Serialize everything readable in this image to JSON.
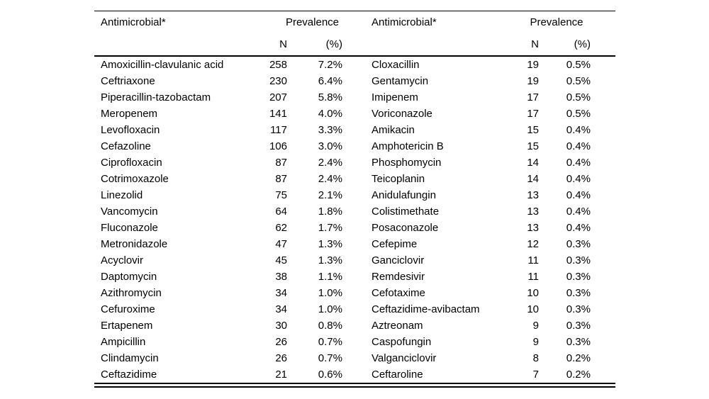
{
  "colors": {
    "background": "#ffffff",
    "text": "#000000",
    "rule": "#000000"
  },
  "table": {
    "header": {
      "antimicrobial_label": "Antimicrobial*",
      "prevalence_label": "Prevalence",
      "n_label": "N",
      "pct_label": "(%)"
    },
    "left_rows": [
      {
        "name": "Amoxicillin-clavulanic acid",
        "n": 258,
        "pct": "7.2%"
      },
      {
        "name": "Ceftriaxone",
        "n": 230,
        "pct": "6.4%"
      },
      {
        "name": "Piperacillin-tazobactam",
        "n": 207,
        "pct": "5.8%"
      },
      {
        "name": "Meropenem",
        "n": 141,
        "pct": "4.0%"
      },
      {
        "name": "Levofloxacin",
        "n": 117,
        "pct": "3.3%"
      },
      {
        "name": "Cefazoline",
        "n": 106,
        "pct": "3.0%"
      },
      {
        "name": "Ciprofloxacin",
        "n": 87,
        "pct": "2.4%"
      },
      {
        "name": "Cotrimoxazole",
        "n": 87,
        "pct": "2.4%"
      },
      {
        "name": "Linezolid",
        "n": 75,
        "pct": "2.1%"
      },
      {
        "name": "Vancomycin",
        "n": 64,
        "pct": "1.8%"
      },
      {
        "name": "Fluconazole",
        "n": 62,
        "pct": "1.7%"
      },
      {
        "name": "Metronidazole",
        "n": 47,
        "pct": "1.3%"
      },
      {
        "name": "Acyclovir",
        "n": 45,
        "pct": "1.3%"
      },
      {
        "name": "Daptomycin",
        "n": 38,
        "pct": "1.1%"
      },
      {
        "name": "Azithromycin",
        "n": 34,
        "pct": "1.0%"
      },
      {
        "name": "Cefuroxime",
        "n": 34,
        "pct": "1.0%"
      },
      {
        "name": "Ertapenem",
        "n": 30,
        "pct": "0.8%"
      },
      {
        "name": "Ampicillin",
        "n": 26,
        "pct": "0.7%"
      },
      {
        "name": "Clindamycin",
        "n": 26,
        "pct": "0.7%"
      },
      {
        "name": "Ceftazidime",
        "n": 21,
        "pct": "0.6%"
      }
    ],
    "right_rows": [
      {
        "name": "Cloxacillin",
        "n": 19,
        "pct": "0.5%"
      },
      {
        "name": "Gentamycin",
        "n": 19,
        "pct": "0.5%"
      },
      {
        "name": "Imipenem",
        "n": 17,
        "pct": "0.5%"
      },
      {
        "name": "Voriconazole",
        "n": 17,
        "pct": "0.5%"
      },
      {
        "name": "Amikacin",
        "n": 15,
        "pct": "0.4%"
      },
      {
        "name": "Amphotericin B",
        "n": 15,
        "pct": "0.4%"
      },
      {
        "name": "Phosphomycin",
        "n": 14,
        "pct": "0.4%"
      },
      {
        "name": "Teicoplanin",
        "n": 14,
        "pct": "0.4%"
      },
      {
        "name": "Anidulafungin",
        "n": 13,
        "pct": "0.4%"
      },
      {
        "name": "Colistimethate",
        "n": 13,
        "pct": "0.4%"
      },
      {
        "name": "Posaconazole",
        "n": 13,
        "pct": "0.4%"
      },
      {
        "name": "Cefepime",
        "n": 12,
        "pct": "0.3%"
      },
      {
        "name": "Ganciclovir",
        "n": 11,
        "pct": "0.3%"
      },
      {
        "name": "Remdesivir",
        "n": 11,
        "pct": "0.3%"
      },
      {
        "name": "Cefotaxime",
        "n": 10,
        "pct": "0.3%"
      },
      {
        "name": "Ceftazidime-avibactam",
        "n": 10,
        "pct": "0.3%"
      },
      {
        "name": "Aztreonam",
        "n": 9,
        "pct": "0.3%"
      },
      {
        "name": "Caspofungin",
        "n": 9,
        "pct": "0.3%"
      },
      {
        "name": "Valganciclovir",
        "n": 8,
        "pct": "0.2%"
      },
      {
        "name": "Ceftaroline",
        "n": 7,
        "pct": "0.2%"
      }
    ]
  },
  "chart_data": {
    "type": "table",
    "title": "",
    "columns": [
      "Antimicrobial*",
      "N",
      "(%)",
      "Antimicrobial*",
      "N",
      "(%)"
    ],
    "rows": [
      [
        "Amoxicillin-clavulanic acid",
        258,
        "7.2%",
        "Cloxacillin",
        19,
        "0.5%"
      ],
      [
        "Ceftriaxone",
        230,
        "6.4%",
        "Gentamycin",
        19,
        "0.5%"
      ],
      [
        "Piperacillin-tazobactam",
        207,
        "5.8%",
        "Imipenem",
        17,
        "0.5%"
      ],
      [
        "Meropenem",
        141,
        "4.0%",
        "Voriconazole",
        17,
        "0.5%"
      ],
      [
        "Levofloxacin",
        117,
        "3.3%",
        "Amikacin",
        15,
        "0.4%"
      ],
      [
        "Cefazoline",
        106,
        "3.0%",
        "Amphotericin B",
        15,
        "0.4%"
      ],
      [
        "Ciprofloxacin",
        87,
        "2.4%",
        "Phosphomycin",
        14,
        "0.4%"
      ],
      [
        "Cotrimoxazole",
        87,
        "2.4%",
        "Teicoplanin",
        14,
        "0.4%"
      ],
      [
        "Linezolid",
        75,
        "2.1%",
        "Anidulafungin",
        13,
        "0.4%"
      ],
      [
        "Vancomycin",
        64,
        "1.8%",
        "Colistimethate",
        13,
        "0.4%"
      ],
      [
        "Fluconazole",
        62,
        "1.7%",
        "Posaconazole",
        13,
        "0.4%"
      ],
      [
        "Metronidazole",
        47,
        "1.3%",
        "Cefepime",
        12,
        "0.3%"
      ],
      [
        "Acyclovir",
        45,
        "1.3%",
        "Ganciclovir",
        11,
        "0.3%"
      ],
      [
        "Daptomycin",
        38,
        "1.1%",
        "Remdesivir",
        11,
        "0.3%"
      ],
      [
        "Azithromycin",
        34,
        "1.0%",
        "Cefotaxime",
        10,
        "0.3%"
      ],
      [
        "Cefuroxime",
        34,
        "1.0%",
        "Ceftazidime-avibactam",
        10,
        "0.3%"
      ],
      [
        "Ertapenem",
        30,
        "0.8%",
        "Aztreonam",
        9,
        "0.3%"
      ],
      [
        "Ampicillin",
        26,
        "0.7%",
        "Caspofungin",
        9,
        "0.3%"
      ],
      [
        "Clindamycin",
        26,
        "0.7%",
        "Valganciclovir",
        8,
        "0.2%"
      ],
      [
        "Ceftazidime",
        21,
        "0.6%",
        "Ceftaroline",
        7,
        "0.2%"
      ]
    ]
  }
}
